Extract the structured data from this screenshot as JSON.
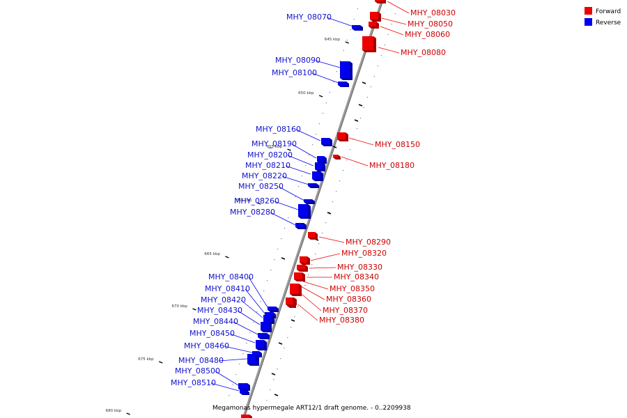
{
  "caption": "Megamonas hypermegale ART12/1 draft genome. - 0..2209938",
  "legend": {
    "forward": {
      "label": "Forward",
      "color": "#ee0000"
    },
    "reverse": {
      "label": "Reverse",
      "color": "#0000ee"
    }
  },
  "ticks": [
    "645 kbp",
    "650 kbp",
    "655 kbp",
    "660 kbp",
    "665 kbp",
    "670 kbp",
    "675 kbp",
    "680 kbp"
  ],
  "forward_genes": [
    "MHY_08030",
    "MHY_08050",
    "MHY_08060",
    "MHY_08080",
    "MHY_08150",
    "MHY_08180",
    "MHY_08290",
    "MHY_08320",
    "MHY_08330",
    "MHY_08340",
    "MHY_08350",
    "MHY_08360",
    "MHY_08370",
    "MHY_08380"
  ],
  "reverse_genes": [
    "MHY_08070",
    "MHY_08090",
    "MHY_08100",
    "MHY_08160",
    "MHY_08190",
    "MHY_08200",
    "MHY_08210",
    "MHY_08220",
    "MHY_08250",
    "MHY_08260",
    "MHY_08280",
    "MHY_08400",
    "MHY_08410",
    "MHY_08420",
    "MHY_08430",
    "MHY_08440",
    "MHY_08450",
    "MHY_08460",
    "MHY_08480",
    "MHY_08500",
    "MHY_08510"
  ]
}
